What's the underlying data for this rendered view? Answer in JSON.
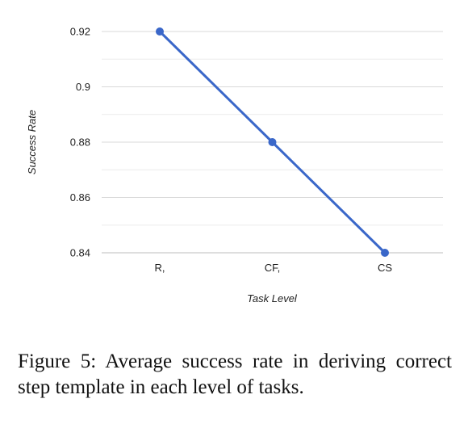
{
  "caption": "Figure 5: Average success rate in deriving correct step template in each level of tasks.",
  "chart_data": {
    "type": "line",
    "categories": [
      "R,",
      "CF,",
      "CS"
    ],
    "series": [
      {
        "values": [
          0.92,
          0.88,
          0.84
        ]
      }
    ],
    "title": "",
    "xlabel": "Task Level",
    "ylabel": "Success Rate",
    "ylim": [
      0.84,
      0.92
    ],
    "yticks": [
      "0.92",
      "0.9",
      "0.88",
      "0.86",
      "0.84"
    ],
    "ytick_values": [
      0.92,
      0.9,
      0.88,
      0.86,
      0.84
    ],
    "grid": true,
    "minor_grid": true,
    "legend": "none",
    "line_color": "#3a67c9",
    "grid_color": "#d9d9d9",
    "minor_grid_color": "#ececec"
  }
}
